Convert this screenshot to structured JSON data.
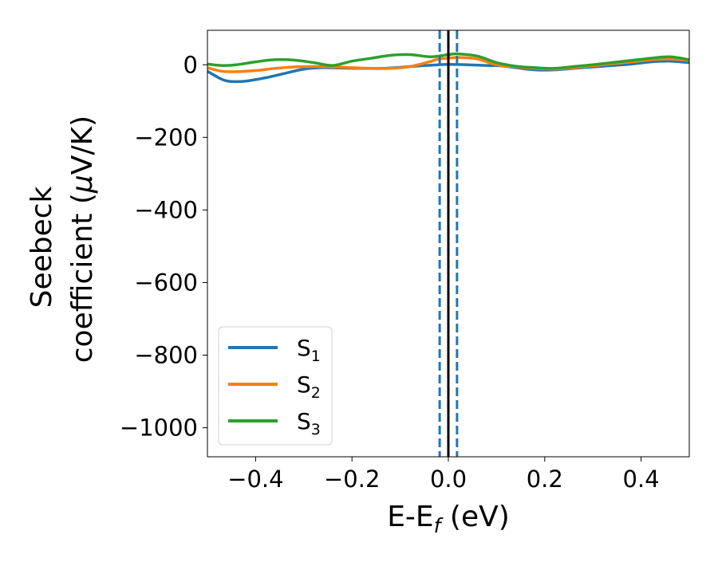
{
  "chart_data": {
    "type": "line",
    "title": "",
    "xlabel": {
      "main": "E-E",
      "sub": "f",
      "tail": " (eV)"
    },
    "ylabel": {
      "line1": "Seebeck",
      "line2_main": "coefficient  (",
      "line2_italic": "μ",
      "line2_tail": "V/K)"
    },
    "xlim": [
      -0.5,
      0.5
    ],
    "ylim": [
      -1080,
      95
    ],
    "x_ticks": [
      -0.4,
      -0.2,
      0.0,
      0.2,
      0.4
    ],
    "x_tick_labels": [
      "−0.4",
      "−0.2",
      "0.0",
      "0.2",
      "0.4"
    ],
    "y_ticks": [
      0,
      -200,
      -400,
      -600,
      -800,
      -1000
    ],
    "y_tick_labels": [
      "0",
      "−200",
      "−400",
      "−600",
      "−800",
      "−1000"
    ],
    "grid": false,
    "legend_position": "lower-left",
    "reference_lines": [
      {
        "x": 0.0,
        "style": "solid",
        "color": "#000000"
      },
      {
        "x": -0.018,
        "style": "dashed",
        "color": "#1f77b4"
      },
      {
        "x": 0.018,
        "style": "dashed",
        "color": "#1f77b4"
      }
    ],
    "series": [
      {
        "name": "S",
        "sub": "1",
        "color": "#1f77b4",
        "x": [
          -0.5,
          -0.47,
          -0.45,
          -0.42,
          -0.38,
          -0.34,
          -0.3,
          -0.26,
          -0.22,
          -0.18,
          -0.14,
          -0.1,
          -0.06,
          -0.02,
          0.0,
          0.04,
          0.08,
          0.11,
          0.14,
          0.18,
          0.22,
          0.26,
          0.3,
          0.34,
          0.38,
          0.42,
          0.46,
          0.5
        ],
        "y": [
          -18,
          -40,
          -46,
          -45,
          -36,
          -24,
          -12,
          -8,
          -9,
          -10,
          -10,
          -7,
          -3,
          0,
          1,
          0,
          -2,
          -3,
          -8,
          -14,
          -14,
          -10,
          -6,
          -2,
          2,
          8,
          10,
          6
        ]
      },
      {
        "name": "S",
        "sub": "2",
        "color": "#ff7f0e",
        "x": [
          -0.5,
          -0.47,
          -0.44,
          -0.4,
          -0.36,
          -0.32,
          -0.28,
          -0.24,
          -0.2,
          -0.16,
          -0.12,
          -0.08,
          -0.04,
          -0.02,
          0.0,
          0.02,
          0.06,
          0.1,
          0.14,
          0.18,
          0.22,
          0.26,
          0.3,
          0.34,
          0.38,
          0.42,
          0.46,
          0.5
        ],
        "y": [
          -8,
          -18,
          -19,
          -16,
          -10,
          -6,
          -5,
          -6,
          -8,
          -10,
          -10,
          -5,
          8,
          16,
          18,
          20,
          16,
          0,
          -6,
          -10,
          -12,
          -8,
          -3,
          3,
          8,
          14,
          16,
          12
        ]
      },
      {
        "name": "S",
        "sub": "3",
        "color": "#2ca02c",
        "x": [
          -0.5,
          -0.47,
          -0.44,
          -0.4,
          -0.36,
          -0.32,
          -0.28,
          -0.24,
          -0.2,
          -0.16,
          -0.12,
          -0.08,
          -0.04,
          -0.02,
          0.0,
          0.02,
          0.06,
          0.1,
          0.14,
          0.18,
          0.22,
          0.26,
          0.3,
          0.34,
          0.38,
          0.42,
          0.46,
          0.5
        ],
        "y": [
          2,
          -2,
          0,
          8,
          14,
          13,
          6,
          -2,
          10,
          18,
          26,
          28,
          22,
          24,
          28,
          30,
          24,
          6,
          -4,
          -8,
          -10,
          -5,
          0,
          6,
          12,
          18,
          22,
          14
        ]
      }
    ]
  }
}
